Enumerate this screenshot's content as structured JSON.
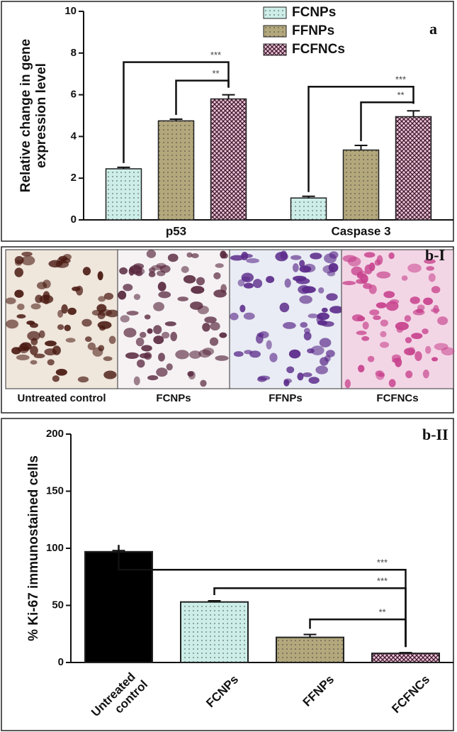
{
  "chart_data": [
    {
      "type": "bar",
      "panel_label": "a",
      "ylabel": [
        "Relative change in gene",
        "expression level"
      ],
      "categories": [
        "p53",
        "Caspase 3"
      ],
      "series": [
        {
          "name": "FCNPs",
          "color": "#cdeee8",
          "pattern": "dots",
          "values": [
            2.45,
            1.05
          ],
          "errors": [
            0.07,
            0.08
          ]
        },
        {
          "name": "FFNPs",
          "color": "#b3a87c",
          "pattern": "dots",
          "values": [
            4.75,
            3.35
          ],
          "errors": [
            0.08,
            0.22
          ]
        },
        {
          "name": "FCFNCs",
          "color": "#f2c4dc",
          "pattern": "crosshatch",
          "values": [
            5.8,
            4.95
          ],
          "errors": [
            0.2,
            0.28
          ]
        }
      ],
      "annotations": [
        "***",
        "**",
        "***",
        "**"
      ],
      "ylim": [
        0,
        10
      ],
      "yticks": [
        0,
        2,
        4,
        6,
        8,
        10
      ]
    },
    {
      "type": "bar",
      "panel_label": "b-II",
      "ylabel": [
        "% Ki-67 immunostained cells"
      ],
      "categories": [
        "Untreated control",
        "FCNPs",
        "FFNPs",
        "FCFNCs"
      ],
      "values": [
        97,
        53,
        22,
        8
      ],
      "errors": [
        1,
        1,
        2.5,
        0.6
      ],
      "colors": [
        "#000000",
        "#cdeee8",
        "#b3a87c",
        "#f2c4dc"
      ],
      "patterns": [
        "solid",
        "dots",
        "dots",
        "crosshatch"
      ],
      "annotations": [
        "***",
        "***",
        "**"
      ],
      "ylim": [
        0,
        200
      ],
      "yticks": [
        0,
        50,
        100,
        150,
        200
      ]
    }
  ],
  "images": {
    "panel_label": "b-I",
    "captions": [
      "Untreated control",
      "FCNPs",
      "FFNPs",
      "FCFNCs"
    ]
  }
}
